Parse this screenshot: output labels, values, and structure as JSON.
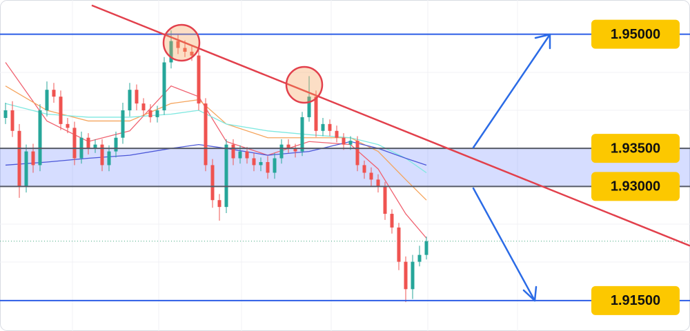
{
  "chart_data": {
    "type": "candlestick",
    "xlim": [
      -0.8,
      99.2
    ],
    "ylim": [
      1.911,
      1.9545
    ],
    "colors": {
      "up": "#26a69a",
      "down": "#ef5350"
    },
    "open": [
      1.939,
      1.94,
      1.9373,
      1.93,
      1.9346,
      1.9328,
      1.94,
      1.9427,
      1.9418,
      1.9382,
      1.9377,
      1.9337,
      1.9364,
      1.935,
      1.9355,
      1.9328,
      1.9346,
      1.9364,
      1.94,
      1.9427,
      1.9409,
      1.94,
      1.9391,
      1.94,
      1.9463,
      1.9491,
      1.9482,
      1.9477,
      1.9472,
      1.9409,
      1.9328,
      1.9282,
      1.9273,
      1.9355,
      1.9337,
      1.9346,
      1.9337,
      1.9328,
      1.9332,
      1.9318,
      1.9337,
      1.9355,
      1.935,
      1.9346,
      1.9391,
      1.9418,
      1.9373,
      1.9382,
      1.9373,
      1.9364,
      1.9355,
      1.936,
      1.9328,
      1.9318,
      1.9309,
      1.93,
      1.9264,
      1.9246,
      1.9201,
      1.9165,
      1.9201,
      1.921
    ],
    "high": [
      1.941,
      1.9412,
      1.9382,
      1.9355,
      1.9356,
      1.9408,
      1.9438,
      1.9436,
      1.9426,
      1.939,
      1.9385,
      1.9372,
      1.937,
      1.9362,
      1.9362,
      1.9354,
      1.9372,
      1.941,
      1.9436,
      1.9434,
      1.9416,
      1.9408,
      1.9406,
      1.947,
      1.9505,
      1.95,
      1.9492,
      1.9486,
      1.948,
      1.9416,
      1.9336,
      1.929,
      1.9362,
      1.9362,
      1.9354,
      1.9352,
      1.9344,
      1.9338,
      1.934,
      1.9344,
      1.9362,
      1.9362,
      1.9356,
      1.9398,
      1.9445,
      1.9426,
      1.939,
      1.9388,
      1.938,
      1.937,
      1.9366,
      1.9366,
      1.9334,
      1.9325,
      1.9316,
      1.9306,
      1.927,
      1.9252,
      1.9208,
      1.921,
      1.9222,
      1.9234
    ],
    "low": [
      1.9382,
      1.9365,
      1.9285,
      1.9292,
      1.9318,
      1.932,
      1.9392,
      1.941,
      1.9374,
      1.937,
      1.9328,
      1.933,
      1.9342,
      1.9344,
      1.932,
      1.932,
      1.9338,
      1.9356,
      1.9392,
      1.94,
      1.9392,
      1.9384,
      1.9384,
      1.9394,
      1.9455,
      1.9474,
      1.947,
      1.9465,
      1.94,
      1.932,
      1.9272,
      1.9255,
      1.9265,
      1.9328,
      1.933,
      1.933,
      1.932,
      1.932,
      1.931,
      1.931,
      1.933,
      1.9344,
      1.9338,
      1.934,
      1.9385,
      1.9365,
      1.9366,
      1.9366,
      1.9358,
      1.9348,
      1.9348,
      1.932,
      1.931,
      1.93,
      1.9292,
      1.9256,
      1.9238,
      1.919,
      1.9148,
      1.9152,
      1.9195,
      1.9204
    ],
    "close": [
      1.94,
      1.9373,
      1.93,
      1.9346,
      1.9328,
      1.94,
      1.9427,
      1.9418,
      1.9382,
      1.9377,
      1.9337,
      1.9364,
      1.935,
      1.9355,
      1.9328,
      1.9346,
      1.9364,
      1.94,
      1.9427,
      1.9409,
      1.94,
      1.9391,
      1.94,
      1.9463,
      1.9491,
      1.9482,
      1.9477,
      1.9472,
      1.9409,
      1.9328,
      1.9282,
      1.9273,
      1.9355,
      1.9337,
      1.9346,
      1.9337,
      1.9328,
      1.9332,
      1.9318,
      1.9337,
      1.9355,
      1.935,
      1.9346,
      1.9391,
      1.9418,
      1.9373,
      1.9382,
      1.9373,
      1.9364,
      1.9355,
      1.936,
      1.9328,
      1.9318,
      1.9309,
      1.93,
      1.9264,
      1.9246,
      1.9201,
      1.9165,
      1.9201,
      1.921,
      1.9228
    ],
    "moving_averages": {
      "x": [
        0,
        6,
        12,
        18,
        24,
        28,
        32,
        38,
        44,
        50,
        54,
        58,
        61
      ],
      "series": [
        {
          "color": "#f06270",
          "values": [
            1.9463,
            1.9386,
            1.9359,
            1.9373,
            1.9432,
            1.9418,
            1.9359,
            1.9341,
            1.9359,
            1.9355,
            1.9323,
            1.9264,
            1.9232
          ]
        },
        {
          "color": "#f5a45c",
          "values": [
            1.9432,
            1.94,
            1.9386,
            1.9386,
            1.9409,
            1.9414,
            1.9382,
            1.9364,
            1.9364,
            1.9364,
            1.9346,
            1.9309,
            1.9282
          ]
        },
        {
          "color": "#7ee8e0",
          "values": [
            1.9409,
            1.9395,
            1.9391,
            1.9391,
            1.9395,
            1.94,
            1.9382,
            1.9373,
            1.9368,
            1.9364,
            1.9355,
            1.9337,
            1.9318
          ]
        },
        {
          "color": "#4a56d8",
          "values": [
            1.9328,
            1.9332,
            1.9337,
            1.9341,
            1.935,
            1.9355,
            1.935,
            1.9341,
            1.9346,
            1.9359,
            1.935,
            1.9337,
            1.9328
          ]
        }
      ]
    },
    "trendline": {
      "x": [
        12.5,
        99.2
      ],
      "values": [
        1.9538,
        1.9222
      ],
      "color": "#e2404c"
    },
    "levels": [
      {
        "value": 1.95,
        "label": "1.95000",
        "color": "#2b5ce6"
      },
      {
        "value": 1.935,
        "label": "1.93500",
        "color": "#555a66"
      },
      {
        "value": 1.93,
        "label": "1.93000",
        "color": "#555a66"
      },
      {
        "value": 1.915,
        "label": "1.91500",
        "color": "#2b5ce6"
      }
    ]
  }
}
